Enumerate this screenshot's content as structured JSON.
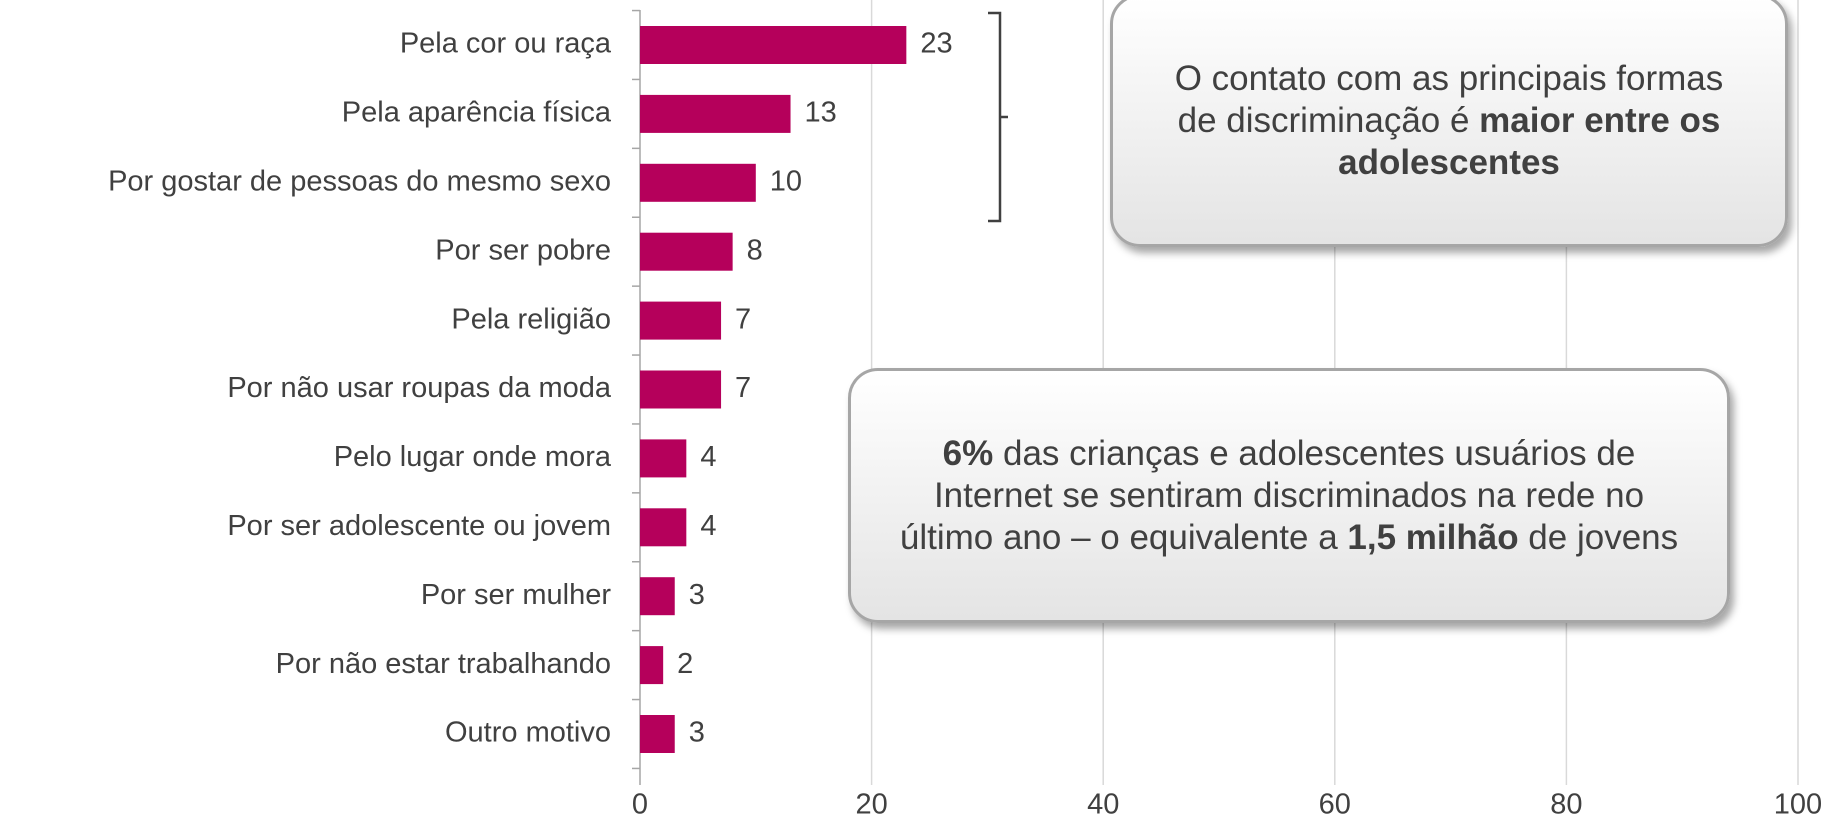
{
  "chart_data": {
    "type": "bar",
    "orientation": "horizontal",
    "color": "#b5005b",
    "categories": [
      "Pela cor ou raça",
      "Pela aparência física",
      "Por gostar de pessoas do mesmo sexo",
      "Por ser pobre",
      "Pela religião",
      "Por não usar roupas da moda",
      "Pelo lugar onde mora",
      "Por ser adolescente ou jovem",
      "Por ser mulher",
      "Por não estar trabalhando",
      "Outro motivo"
    ],
    "values": [
      23,
      13,
      10,
      8,
      7,
      7,
      4,
      4,
      3,
      2,
      3
    ],
    "xlim": [
      0,
      100
    ],
    "xticks": [
      0,
      20,
      40,
      60,
      80,
      100
    ],
    "grid": true,
    "annotations": [
      {
        "parts": [
          {
            "text": "O contato com as principais formas de discriminação é ",
            "bold": false
          },
          {
            "text": "maior entre os adolescentes",
            "bold": true
          }
        ]
      },
      {
        "parts": [
          {
            "text": "6%",
            "bold": true
          },
          {
            "text": " das crianças e adolescentes usuários de Internet se sentiram discriminados na rede no último ano – o equivalente a ",
            "bold": false
          },
          {
            "text": "1,5 milhão",
            "bold": true
          },
          {
            "text": " de jovens",
            "bold": false
          }
        ]
      }
    ]
  }
}
